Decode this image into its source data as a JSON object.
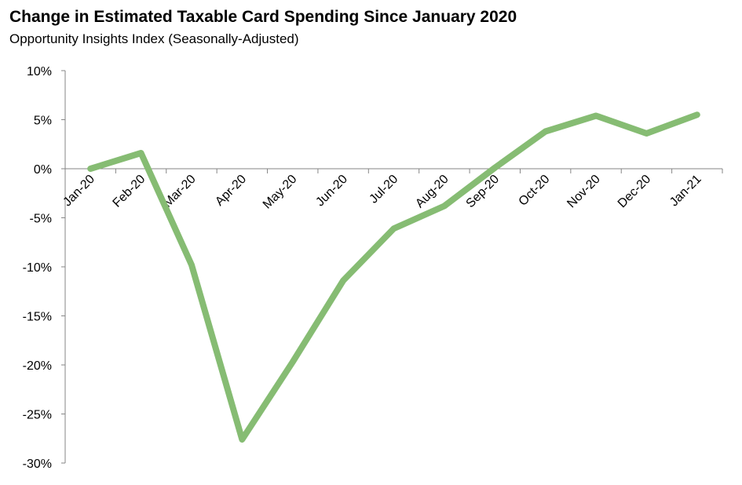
{
  "chart_data": {
    "type": "line",
    "title": "Change in Estimated Taxable Card Spending Since January 2020",
    "subtitle": "Opportunity Insights Index (Seasonally-Adjusted)",
    "xlabel": "",
    "ylabel": "",
    "categories": [
      "Jan-20",
      "Feb-20",
      "Mar-20",
      "Apr-20",
      "May-20",
      "Jun-20",
      "Jul-20",
      "Aug-20",
      "Sep-20",
      "Oct-20",
      "Nov-20",
      "Dec-20",
      "Jan-21"
    ],
    "values": [
      0,
      1.6,
      -9.8,
      -27.6,
      -19.7,
      -11.4,
      -6.1,
      -3.8,
      0.1,
      3.8,
      5.4,
      3.6,
      5.5
    ],
    "unit": "%",
    "ylim": [
      -30,
      10
    ],
    "yticks": [
      10,
      5,
      0,
      -5,
      -10,
      -15,
      -20,
      -25,
      -30
    ],
    "ytick_labels": [
      "10%",
      "5%",
      "0%",
      "-5%",
      "-10%",
      "-15%",
      "-20%",
      "-25%",
      "-30%"
    ],
    "grid": false,
    "legend": "none",
    "line_color": "#86bc73",
    "axis_color": "#868686"
  }
}
